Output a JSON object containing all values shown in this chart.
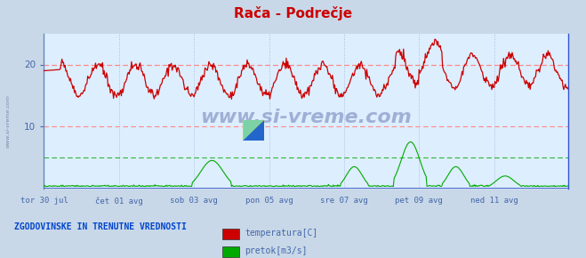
{
  "title": "Rača - Podrečje",
  "title_color": "#cc0000",
  "bg_color": "#ddeeff",
  "outer_bg_color": "#c8d8e8",
  "xlabel_color": "#4466aa",
  "ylabel_color": "#4466aa",
  "grid_color_red": "#ff8888",
  "grid_color_blue": "#aabbdd",
  "watermark_text": "www.si-vreme.com",
  "watermark_color": "#7788bb",
  "sidebar_text": "www.si-vreme.com",
  "sidebar_color": "#7788aa",
  "legend_label_color": "#4466aa",
  "temp_color": "#cc0000",
  "flow_color": "#00aa00",
  "temp_ref_y": 20,
  "flow_ref_y": 5,
  "x_tick_labels": [
    "tor 30 jul",
    "čet 01 avg",
    "sob 03 avg",
    "pon 05 avg",
    "sre 07 avg",
    "pet 09 avg",
    "ned 11 avg"
  ],
  "x_tick_positions": [
    0,
    96,
    192,
    288,
    384,
    480,
    576
  ],
  "y_ticks": [
    10,
    20
  ],
  "ylim": [
    0,
    25
  ],
  "n_points": 672,
  "bottom_label": "ZGODOVINSKE IN TRENUTNE VREDNOSTI",
  "bottom_label_color": "#0044cc",
  "legend_items": [
    {
      "label": "temperatura[C]",
      "color": "#cc0000"
    },
    {
      "label": "pretok[m3/s]",
      "color": "#00aa00"
    }
  ]
}
